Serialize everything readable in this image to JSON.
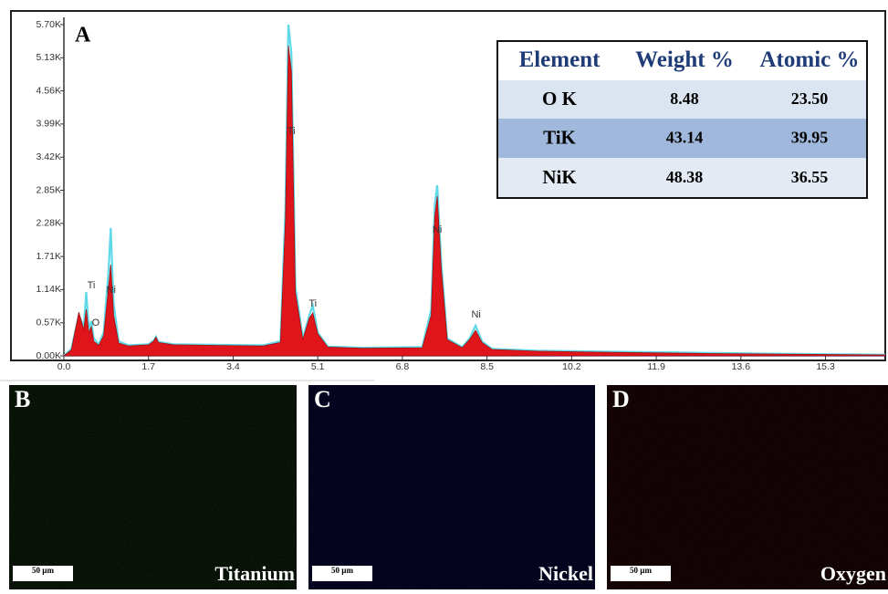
{
  "chart_data": {
    "type": "line",
    "panel_label": "A",
    "x": [
      0.0,
      0.15,
      0.3,
      0.4,
      0.45,
      0.5,
      0.55,
      0.6,
      0.7,
      0.8,
      0.9,
      0.94,
      1.0,
      1.1,
      1.3,
      1.7,
      1.8,
      1.85,
      1.9,
      2.2,
      3.0,
      4.0,
      4.35,
      4.45,
      4.51,
      4.57,
      4.65,
      4.8,
      4.93,
      5.0,
      5.1,
      5.3,
      6.0,
      7.2,
      7.38,
      7.45,
      7.5,
      7.58,
      7.7,
      8.0,
      8.15,
      8.27,
      8.4,
      8.6,
      9.5,
      11,
      13,
      15,
      16.5
    ],
    "series": [
      {
        "color": "#5fd8e8",
        "fill": false,
        "values": [
          0,
          120,
          700,
          500,
          1100,
          450,
          600,
          300,
          200,
          400,
          1500,
          2200,
          900,
          250,
          180,
          200,
          260,
          330,
          240,
          200,
          190,
          180,
          250,
          2500,
          5700,
          5200,
          1200,
          300,
          700,
          864,
          400,
          160,
          140,
          150,
          800,
          2600,
          2936,
          1600,
          300,
          150,
          300,
          518,
          250,
          120,
          90,
          70,
          50,
          30,
          20
        ]
      },
      {
        "color": "#e0151b",
        "fill": true,
        "values": [
          0,
          100,
          750,
          450,
          800,
          400,
          500,
          250,
          180,
          350,
          1200,
          1570,
          700,
          220,
          170,
          190,
          250,
          320,
          230,
          190,
          180,
          170,
          230,
          2300,
          5337,
          4900,
          1100,
          280,
          650,
          738,
          380,
          150,
          130,
          140,
          700,
          2400,
          2748,
          1500,
          280,
          140,
          280,
          440,
          230,
          110,
          80,
          60,
          40,
          25,
          15
        ]
      }
    ],
    "annotations": [
      {
        "text": "Ti",
        "x": 0.55,
        "y": 1209
      },
      {
        "text": "Ni",
        "x": 0.95,
        "y": 1130
      },
      {
        "text": "O",
        "x": 0.64,
        "y": 565
      },
      {
        "text": "Ti",
        "x": 4.57,
        "y": 3863
      },
      {
        "text": "Ti",
        "x": 5.0,
        "y": 895
      },
      {
        "text": "Ni",
        "x": 7.5,
        "y": 2167
      },
      {
        "text": "Ni",
        "x": 8.28,
        "y": 707
      }
    ],
    "xlim": [
      0,
      16.5
    ],
    "xticks": [
      {
        "value": 0,
        "label": "0.0"
      },
      1.7,
      3.4,
      5.1,
      6.8,
      8.5,
      10.2,
      11.9,
      13.6,
      15.3
    ],
    "ylim": [
      0,
      5700
    ],
    "yticks": [
      {
        "value": 0,
        "label": "0.00K"
      },
      {
        "value": 570,
        "label": "0.57K"
      },
      {
        "value": 1140,
        "label": "1.14K"
      },
      {
        "value": 1710,
        "label": "1.71K"
      },
      {
        "value": 2280,
        "label": "2.28K"
      },
      {
        "value": 2850,
        "label": "2.85K"
      },
      {
        "value": 3420,
        "label": "3.42K"
      },
      {
        "value": 3990,
        "label": "3.99K"
      },
      {
        "value": 4560,
        "label": "4.56K"
      },
      {
        "value": 5130,
        "label": "5.13K"
      },
      {
        "value": 5700,
        "label": "5.70K"
      }
    ],
    "grid": false
  },
  "table": {
    "header": [
      "Element",
      "Weight %",
      "Atomic %"
    ],
    "rows": [
      [
        "O K",
        "8.48",
        "23.50"
      ],
      [
        "TiK",
        "43.14",
        "39.95"
      ],
      [
        "NiK",
        "48.38",
        "36.55"
      ]
    ]
  },
  "maps": [
    {
      "label": "B",
      "element": "Titanium",
      "scale": "50 µm",
      "color": "#3a9a26"
    },
    {
      "label": "C",
      "element": "Nickel",
      "scale": "50 µm",
      "color": "#1c1cd6"
    },
    {
      "label": "D",
      "element": "Oxygen",
      "scale": "50 µm",
      "color": "#c81818"
    }
  ]
}
